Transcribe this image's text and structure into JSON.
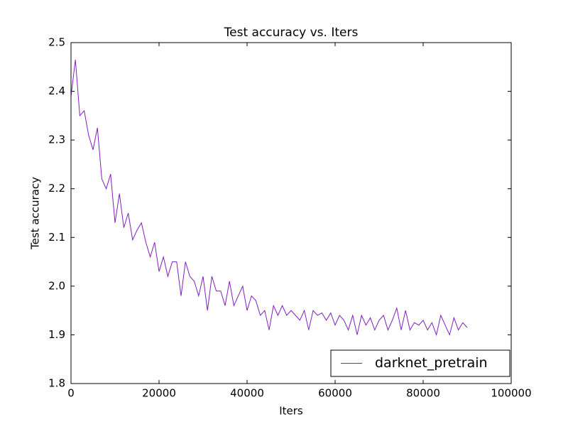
{
  "chart_data": {
    "type": "line",
    "title": "Test accuracy  vs. Iters",
    "x_label": "Iters",
    "y_label": "Test accuracy",
    "x": [
      0,
      1000,
      2000,
      3000,
      4000,
      5000,
      6000,
      7000,
      8000,
      9000,
      10000,
      11000,
      12000,
      13000,
      14000,
      15000,
      16000,
      17000,
      18000,
      19000,
      20000,
      21000,
      22000,
      23000,
      24000,
      25000,
      26000,
      27000,
      28000,
      29000,
      30000,
      31000,
      32000,
      33000,
      34000,
      35000,
      36000,
      37000,
      38000,
      39000,
      40000,
      41000,
      42000,
      43000,
      44000,
      45000,
      46000,
      47000,
      48000,
      49000,
      50000,
      51000,
      52000,
      53000,
      54000,
      55000,
      56000,
      57000,
      58000,
      59000,
      60000,
      61000,
      62000,
      63000,
      64000,
      65000,
      66000,
      67000,
      68000,
      69000,
      70000,
      71000,
      72000,
      73000,
      74000,
      75000,
      76000,
      77000,
      78000,
      79000,
      80000,
      81000,
      82000,
      83000,
      84000,
      85000,
      86000,
      87000,
      88000,
      89000,
      90000
    ],
    "series": [
      {
        "name": "darknet_pretrain",
        "color": "#7f1fbf",
        "values": [
          2.39,
          2.465,
          2.35,
          2.36,
          2.31,
          2.28,
          2.325,
          2.22,
          2.2,
          2.23,
          2.13,
          2.19,
          2.12,
          2.15,
          2.095,
          2.115,
          2.13,
          2.09,
          2.06,
          2.09,
          2.03,
          2.06,
          2.02,
          2.05,
          2.05,
          1.98,
          2.05,
          2.02,
          2.01,
          1.98,
          2.02,
          1.95,
          2.02,
          1.99,
          1.99,
          1.96,
          2.01,
          1.96,
          1.98,
          2.0,
          1.95,
          1.98,
          1.97,
          1.94,
          1.95,
          1.91,
          1.96,
          1.94,
          1.96,
          1.94,
          1.95,
          1.94,
          1.93,
          1.95,
          1.91,
          1.95,
          1.94,
          1.945,
          1.93,
          1.945,
          1.92,
          1.94,
          1.93,
          1.91,
          1.94,
          1.9,
          1.94,
          1.92,
          1.935,
          1.91,
          1.93,
          1.94,
          1.91,
          1.93,
          1.955,
          1.91,
          1.95,
          1.91,
          1.925,
          1.92,
          1.93,
          1.91,
          1.925,
          1.9,
          1.94,
          1.92,
          1.9,
          1.935,
          1.91,
          1.925,
          1.915
        ]
      }
    ],
    "xlim": [
      0,
      100000
    ],
    "ylim": [
      1.8,
      2.5
    ],
    "xticks": [
      0,
      20000,
      40000,
      60000,
      80000,
      100000
    ],
    "yticks": [
      1.8,
      1.9,
      {
        "value": 2,
        "label": "2.0"
      },
      2.1,
      2.2,
      2.3,
      2.4,
      2.5
    ],
    "grid": false,
    "legend_position": "lower right"
  }
}
